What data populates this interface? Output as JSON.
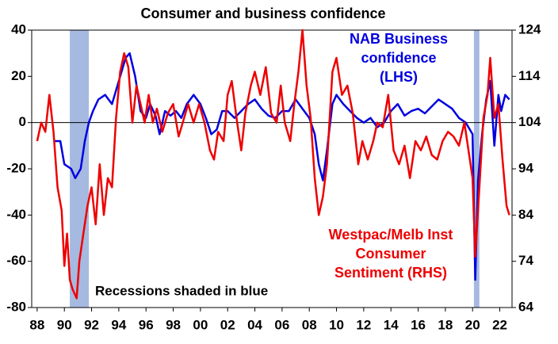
{
  "chart_data": {
    "type": "line",
    "title": "Consumer and business confidence",
    "xlim": [
      1987.6,
      2022.9
    ],
    "xticks": [
      {
        "value": 1988,
        "label": "88"
      },
      {
        "value": 1990,
        "label": "90"
      },
      {
        "value": 1992,
        "label": "92"
      },
      {
        "value": 1994,
        "label": "94"
      },
      {
        "value": 1996,
        "label": "96"
      },
      {
        "value": 1998,
        "label": "98"
      },
      {
        "value": 2000,
        "label": "00"
      },
      {
        "value": 2002,
        "label": "02"
      },
      {
        "value": 2004,
        "label": "04"
      },
      {
        "value": 2006,
        "label": "06"
      },
      {
        "value": 2008,
        "label": "08"
      },
      {
        "value": 2010,
        "label": "10"
      },
      {
        "value": 2012,
        "label": "12"
      },
      {
        "value": 2014,
        "label": "14"
      },
      {
        "value": 2016,
        "label": "16"
      },
      {
        "value": 2018,
        "label": "18"
      },
      {
        "value": 2020,
        "label": "20"
      },
      {
        "value": 2022,
        "label": "22"
      }
    ],
    "ylim": [
      -80,
      40
    ],
    "yticks": [
      -80,
      -60,
      -40,
      -20,
      0,
      20,
      40
    ],
    "y2lim": [
      64,
      124
    ],
    "y2ticks": [
      64,
      74,
      84,
      94,
      104,
      114,
      124
    ],
    "shaded_periods": [
      [
        1990.4,
        1991.8
      ],
      [
        2020.1,
        2020.5
      ]
    ],
    "shade_color": "#a6b9e0",
    "recession_note": "Recessions shaded in blue",
    "series": [
      {
        "name": [
          "NAB Business",
          "confidence",
          "(LHS)"
        ],
        "color": "#0000e0",
        "x": [
          1989.3,
          1989.7,
          1990.0,
          1990.5,
          1990.8,
          1991.2,
          1991.5,
          1991.8,
          1992.1,
          1992.5,
          1993.0,
          1993.5,
          1994.0,
          1994.5,
          1994.8,
          1995.2,
          1995.6,
          1996.0,
          1996.3,
          1996.7,
          1997.0,
          1997.4,
          1997.8,
          1998.2,
          1998.6,
          1999.0,
          1999.5,
          2000.0,
          2000.4,
          2000.8,
          2001.2,
          2001.6,
          2002.0,
          2002.5,
          2003.0,
          2003.5,
          2004.0,
          2004.5,
          2005.0,
          2005.5,
          2006.0,
          2006.5,
          2007.0,
          2007.5,
          2008.0,
          2008.4,
          2008.7,
          2009.0,
          2009.3,
          2009.7,
          2010.0,
          2010.5,
          2011.0,
          2011.5,
          2012.0,
          2012.5,
          2013.0,
          2013.5,
          2014.0,
          2014.5,
          2015.0,
          2015.5,
          2016.0,
          2016.5,
          2017.0,
          2017.5,
          2018.0,
          2018.5,
          2019.0,
          2019.5,
          2020.0,
          2020.2,
          2020.4,
          2020.7,
          2021.0,
          2021.3,
          2021.6,
          2021.9,
          2022.1,
          2022.4,
          2022.7
        ],
        "values": [
          -8,
          -8,
          -18,
          -20,
          -24,
          -20,
          -8,
          0,
          5,
          10,
          12,
          8,
          18,
          28,
          30,
          20,
          5,
          2,
          8,
          3,
          -5,
          5,
          3,
          5,
          2,
          8,
          12,
          8,
          2,
          -5,
          -3,
          5,
          5,
          2,
          5,
          8,
          10,
          6,
          3,
          2,
          5,
          5,
          10,
          6,
          2,
          -5,
          -18,
          -25,
          -12,
          8,
          12,
          8,
          5,
          2,
          0,
          2,
          -2,
          0,
          5,
          8,
          3,
          5,
          6,
          4,
          7,
          10,
          8,
          6,
          2,
          0,
          -5,
          -68,
          -25,
          -5,
          10,
          18,
          -10,
          12,
          5,
          12,
          10
        ]
      },
      {
        "name": [
          "Westpac/Melb Inst",
          "Consumer",
          "Sentiment (RHS)"
        ],
        "color": "#ee0000",
        "axis": "y2",
        "x": [
          1988.0,
          1988.3,
          1988.6,
          1988.9,
          1989.2,
          1989.5,
          1989.8,
          1990.0,
          1990.2,
          1990.4,
          1990.6,
          1990.9,
          1991.1,
          1991.4,
          1991.7,
          1992.0,
          1992.3,
          1992.6,
          1992.9,
          1993.2,
          1993.5,
          1993.8,
          1994.1,
          1994.4,
          1994.7,
          1995.0,
          1995.3,
          1995.6,
          1995.9,
          1996.2,
          1996.5,
          1996.8,
          1997.2,
          1997.6,
          1998.0,
          1998.4,
          1998.8,
          1999.1,
          1999.5,
          1999.9,
          2000.3,
          2000.7,
          2001.0,
          2001.3,
          2001.7,
          2002.0,
          2002.3,
          2002.7,
          2003.0,
          2003.3,
          2003.7,
          2004.0,
          2004.4,
          2004.8,
          2005.2,
          2005.6,
          2005.9,
          2006.2,
          2006.6,
          2006.9,
          2007.2,
          2007.5,
          2007.8,
          2008.1,
          2008.4,
          2008.7,
          2009.0,
          2009.3,
          2009.7,
          2010.0,
          2010.4,
          2010.8,
          2011.2,
          2011.6,
          2011.9,
          2012.3,
          2012.7,
          2013.0,
          2013.4,
          2013.8,
          2014.2,
          2014.6,
          2015.0,
          2015.4,
          2015.8,
          2016.2,
          2016.6,
          2017.0,
          2017.4,
          2017.8,
          2018.2,
          2018.6,
          2019.0,
          2019.4,
          2019.8,
          2020.0,
          2020.2,
          2020.5,
          2020.8,
          2021.1,
          2021.3,
          2021.6,
          2021.9,
          2022.2,
          2022.5,
          2022.7
        ],
        "values": [
          100,
          104,
          102,
          110,
          102,
          90,
          85,
          73,
          80,
          70,
          68,
          66,
          74,
          80,
          86,
          90,
          82,
          95,
          84,
          92,
          90,
          105,
          115,
          119,
          116,
          104,
          112,
          108,
          104,
          110,
          104,
          107,
          102,
          106,
          108,
          101,
          105,
          108,
          104,
          108,
          104,
          98,
          96,
          102,
          100,
          110,
          113,
          104,
          98,
          106,
          112,
          115,
          110,
          116,
          106,
          104,
          112,
          104,
          100,
          108,
          115,
          124,
          112,
          105,
          92,
          84,
          88,
          95,
          115,
          118,
          110,
          112,
          106,
          95,
          100,
          96,
          100,
          104,
          103,
          110,
          98,
          95,
          99,
          92,
          100,
          98,
          101,
          97,
          96,
          100,
          102,
          101,
          99,
          104,
          96,
          92,
          75,
          90,
          105,
          110,
          118,
          105,
          108,
          96,
          86,
          84
        ]
      }
    ]
  }
}
